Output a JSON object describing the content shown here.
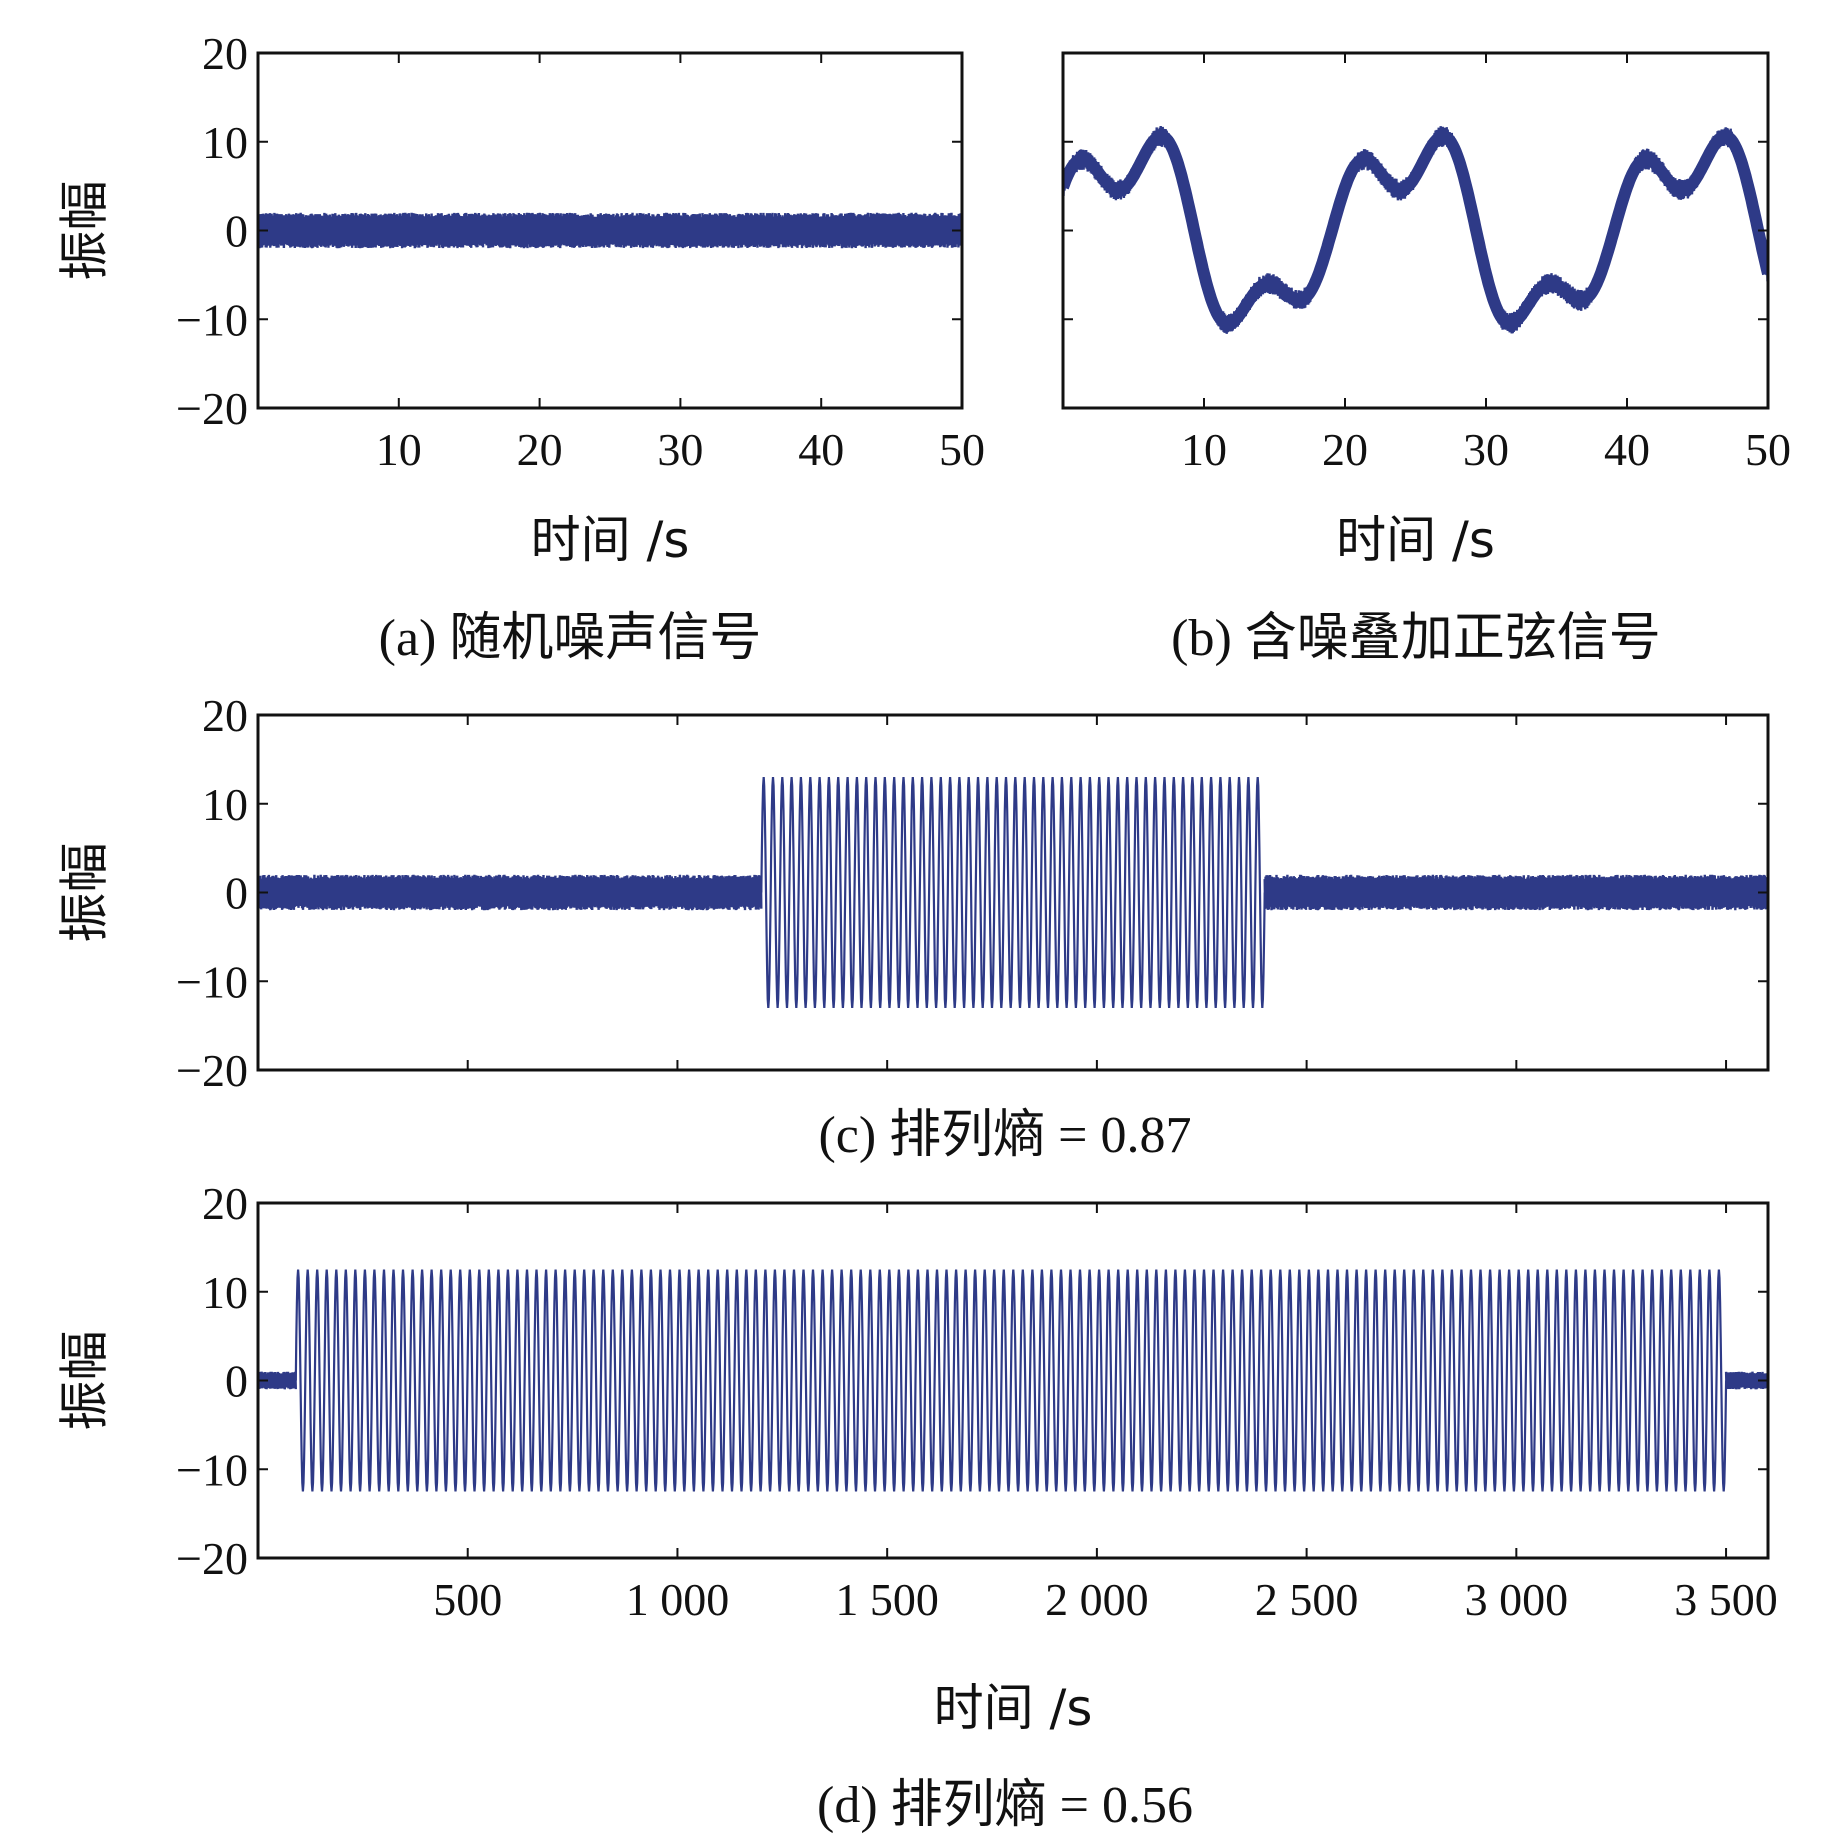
{
  "figure": {
    "signal_color": "#2e3a87"
  },
  "chart_data": [
    {
      "id": "a",
      "type": "line",
      "caption": "(a) 随机噪声信号",
      "xlabel": "时间 /s",
      "ylabel": "振幅",
      "xlim": [
        0,
        50
      ],
      "ylim": [
        -20,
        20
      ],
      "xticks": [
        10,
        20,
        30,
        40,
        50
      ],
      "xtick_labels": [
        "10",
        "20",
        "30",
        "40",
        "50"
      ],
      "yticks": [
        20,
        10,
        0,
        -10,
        -20
      ],
      "ytick_labels": [
        "20",
        "10",
        "0",
        "−10",
        "−20"
      ],
      "series": [
        {
          "signal": "random noise",
          "x_range": [
            0,
            50
          ],
          "envelope": [
            -2,
            2
          ]
        }
      ]
    },
    {
      "id": "b",
      "type": "line",
      "caption": "(b) 含噪叠加正弦信号",
      "xlabel": "时间 /s",
      "ylabel": "",
      "xlim": [
        0,
        50
      ],
      "ylim": [
        -20,
        20
      ],
      "xticks": [
        10,
        20,
        30,
        40,
        50
      ],
      "xtick_labels": [
        "10",
        "20",
        "30",
        "40",
        "50"
      ],
      "yticks": [
        20,
        10,
        0,
        -10,
        -20
      ],
      "ytick_labels": [],
      "series": [
        {
          "signal": "noisy superimposed sine",
          "x_range": [
            0,
            50
          ],
          "period": 20,
          "amplitude": 12,
          "noise": 1.2
        }
      ]
    },
    {
      "id": "c",
      "type": "line",
      "caption": "(c) 排列熵 = 0.87",
      "xlabel": "",
      "ylabel": "振幅",
      "xlim": [
        0,
        3600
      ],
      "ylim": [
        -20,
        20
      ],
      "xticks": [
        500,
        1000,
        1500,
        2000,
        2500,
        3000,
        3500
      ],
      "xtick_labels": [],
      "yticks": [
        20,
        10,
        0,
        -10,
        -20
      ],
      "ytick_labels": [
        "20",
        "10",
        "0",
        "−10",
        "−20"
      ],
      "series": [
        {
          "signal": "noise",
          "x_range": [
            0,
            1200
          ],
          "envelope": [
            -2,
            2
          ]
        },
        {
          "signal": "sine",
          "x_range": [
            1200,
            2400
          ],
          "amplitude": 13,
          "cycles": 54
        },
        {
          "signal": "noise",
          "x_range": [
            2400,
            3600
          ],
          "envelope": [
            -2,
            2
          ]
        }
      ]
    },
    {
      "id": "d",
      "type": "line",
      "caption": "(d) 排列熵 = 0.56",
      "xlabel": "时间 /s",
      "ylabel": "振幅",
      "xlim": [
        0,
        3600
      ],
      "ylim": [
        -20,
        20
      ],
      "xticks": [
        500,
        1000,
        1500,
        2000,
        2500,
        3000,
        3500
      ],
      "xtick_labels": [
        "500",
        "1 000",
        "1 500",
        "2 000",
        "2 500",
        "3 000",
        "3 500"
      ],
      "yticks": [
        20,
        10,
        0,
        -10,
        -20
      ],
      "ytick_labels": [
        "20",
        "10",
        "0",
        "−10",
        "−20"
      ],
      "series": [
        {
          "signal": "noise",
          "x_range": [
            0,
            90
          ],
          "envelope": [
            -1,
            1
          ]
        },
        {
          "signal": "sine",
          "x_range": [
            90,
            3500
          ],
          "amplitude": 12.5,
          "cycles": 150
        },
        {
          "signal": "noise",
          "x_range": [
            3500,
            3600
          ],
          "envelope": [
            -1,
            1
          ]
        }
      ]
    }
  ]
}
